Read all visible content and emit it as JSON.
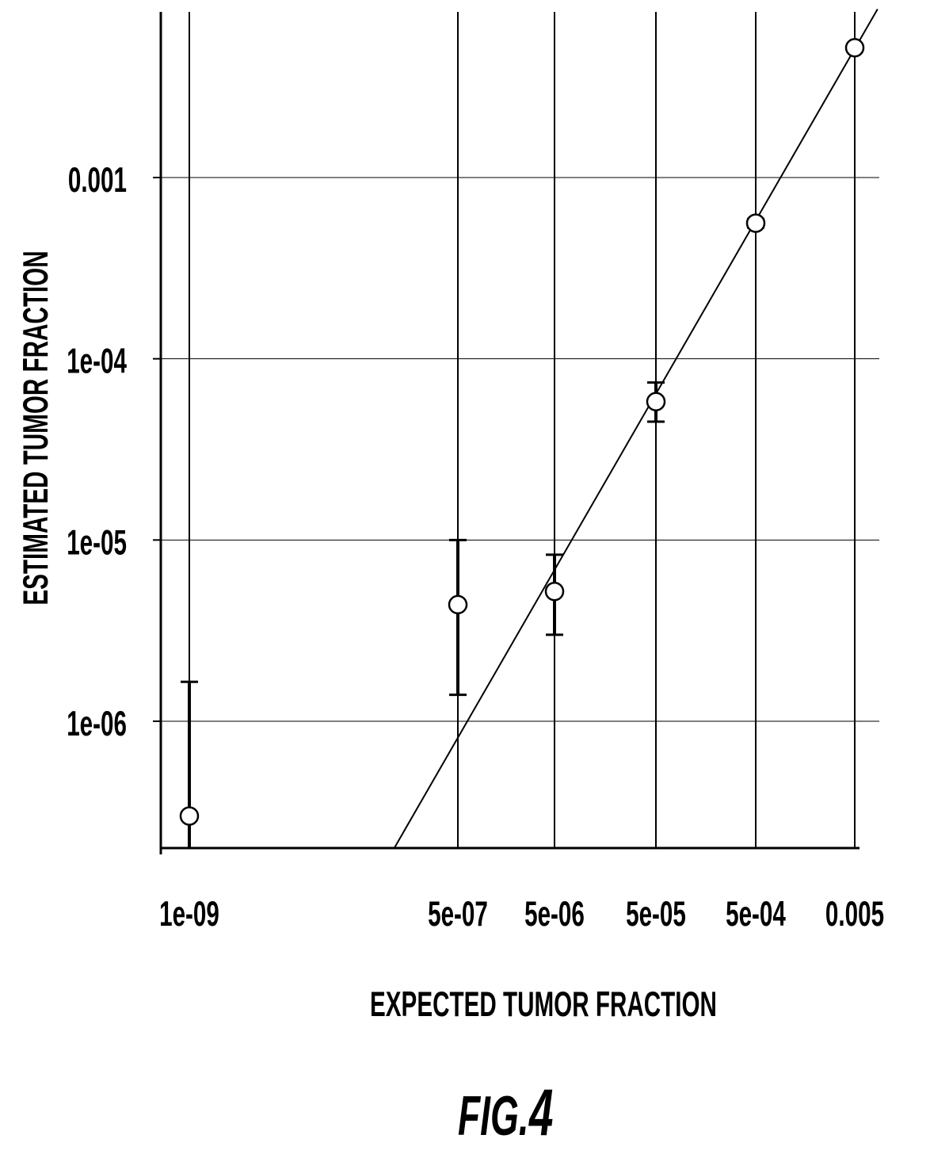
{
  "figure": {
    "label": "FIG.",
    "number": "4"
  },
  "chart_data": {
    "type": "scatter",
    "title": "",
    "xlabel": "EXPECTED TUMOR FRACTION",
    "ylabel": "ESTIMATED TUMOR FRACTION",
    "x_scale": "log",
    "y_scale": "log",
    "x_ticks": [
      {
        "value": 1e-09,
        "label": "1e-09"
      },
      {
        "value": 5e-07,
        "label": "5e-07"
      },
      {
        "value": 5e-06,
        "label": "5e-06"
      },
      {
        "value": 5e-05,
        "label": "5e-05"
      },
      {
        "value": 0.0005,
        "label": "5e-04"
      },
      {
        "value": 0.005,
        "label": "0.005"
      }
    ],
    "y_ticks": [
      {
        "value": 1e-06,
        "label": "1e-06"
      },
      {
        "value": 1e-05,
        "label": "1e-05"
      },
      {
        "value": 0.0001,
        "label": "1e-04"
      },
      {
        "value": 0.001,
        "label": "0.001"
      }
    ],
    "ylim": [
      2e-07,
      0.0085
    ],
    "grid": true,
    "series": [
      {
        "points": [
          {
            "x": 1e-09,
            "y": 3e-07,
            "y_low": null,
            "y_high": 1.65e-06
          },
          {
            "x": 5e-07,
            "y": 4.4e-06,
            "y_low": 1.4e-06,
            "y_high": 1e-05
          },
          {
            "x": 5e-06,
            "y": 5.2e-06,
            "y_low": 3e-06,
            "y_high": 8.3e-06
          },
          {
            "x": 5e-05,
            "y": 5.8e-05,
            "y_low": 4.5e-05,
            "y_high": 7.4e-05
          },
          {
            "x": 0.0005,
            "y": 0.00056,
            "y_low": 0.00053,
            "y_high": 0.00059
          },
          {
            "x": 0.005,
            "y": 0.0052,
            "y_low": 0.005,
            "y_high": 0.0054
          }
        ]
      }
    ],
    "fit_line": {
      "from": {
        "x": 1.15e-07,
        "y": 2e-07
      },
      "to": {
        "x": 0.0085,
        "y": 0.0085
      }
    }
  }
}
